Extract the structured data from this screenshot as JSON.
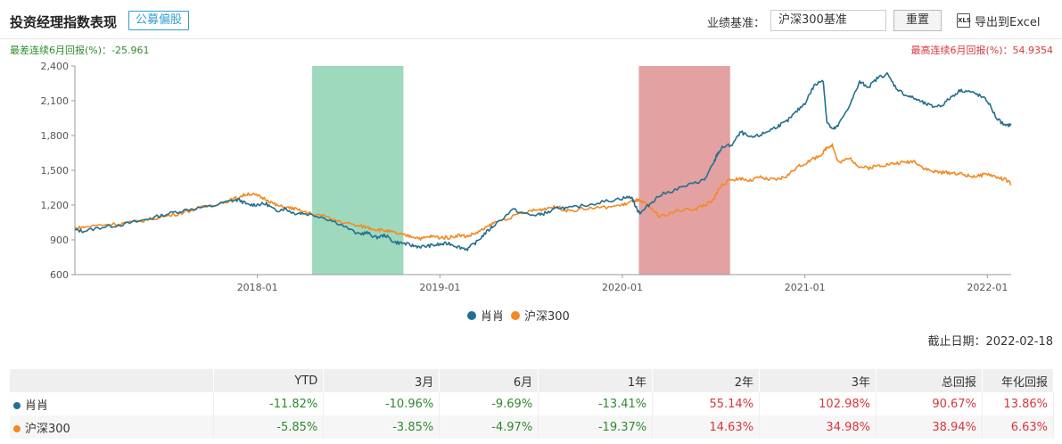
{
  "header": {
    "title": "投资经理指数表现",
    "tag": "公募偏股",
    "benchmark_label": "业绩基准：",
    "benchmark_value": "沪深300基准",
    "reset_label": "重置",
    "export_label": "导出到Excel",
    "export_icon_text": "XLS"
  },
  "worst_6m": "最差连续6月回报(%)：-25.961",
  "best_6m": "最高连续6月回报(%)：54.9354",
  "cutoff": "截止日期：2022-02-18",
  "colors": {
    "series1": "#236f8f",
    "series2": "#f28a23",
    "worst_band": "#9fd9bd",
    "best_band": "#e3a1a1"
  },
  "chart_data": {
    "type": "line",
    "ylim": [
      600,
      2400
    ],
    "yticks": [
      "600",
      "900",
      "1,200",
      "1,500",
      "1,800",
      "2,100",
      "2,400"
    ],
    "ytick_values": [
      600,
      900,
      1200,
      1500,
      1800,
      2100,
      2400
    ],
    "xticks": [
      "2018-01",
      "2019-01",
      "2020-01",
      "2021-01",
      "2022-01"
    ],
    "xtick_values": [
      2018.0,
      2019.0,
      2020.0,
      2021.0,
      2022.0
    ],
    "xlim": [
      2017.0,
      2022.13
    ],
    "worst_band": [
      2018.3,
      2018.8
    ],
    "best_band": [
      2020.09,
      2020.59
    ],
    "legend": [
      "肖肖",
      "沪深300"
    ],
    "series": [
      {
        "name": "肖肖",
        "x": [
          2017.0,
          2017.05,
          2017.15,
          2017.25,
          2017.35,
          2017.45,
          2017.55,
          2017.65,
          2017.75,
          2017.85,
          2017.9,
          2017.95,
          2018.0,
          2018.05,
          2018.1,
          2018.15,
          2018.2,
          2018.25,
          2018.35,
          2018.45,
          2018.55,
          2018.6,
          2018.65,
          2018.7,
          2018.75,
          2018.8,
          2018.85,
          2018.9,
          2018.95,
          2019.0,
          2019.05,
          2019.1,
          2019.15,
          2019.2,
          2019.25,
          2019.3,
          2019.4,
          2019.5,
          2019.55,
          2019.6,
          2019.65,
          2019.7,
          2019.8,
          2019.9,
          2020.0,
          2020.05,
          2020.08,
          2020.1,
          2020.15,
          2020.2,
          2020.3,
          2020.4,
          2020.45,
          2020.5,
          2020.52,
          2020.55,
          2020.6,
          2020.65,
          2020.7,
          2020.75,
          2020.8,
          2020.85,
          2020.9,
          2020.95,
          2021.0,
          2021.05,
          2021.1,
          2021.12,
          2021.15,
          2021.18,
          2021.25,
          2021.3,
          2021.35,
          2021.4,
          2021.45,
          2021.5,
          2021.55,
          2021.6,
          2021.65,
          2021.7,
          2021.75,
          2021.8,
          2021.85,
          2021.9,
          2021.95,
          2022.0,
          2022.05,
          2022.1,
          2022.13
        ],
        "values": [
          985,
          975,
          1010,
          1030,
          1060,
          1100,
          1140,
          1170,
          1190,
          1235,
          1245,
          1200,
          1205,
          1210,
          1150,
          1170,
          1130,
          1130,
          1100,
          1040,
          950,
          960,
          920,
          940,
          880,
          870,
          850,
          840,
          850,
          860,
          870,
          840,
          820,
          880,
          960,
          1030,
          1160,
          1110,
          1120,
          1140,
          1180,
          1170,
          1200,
          1230,
          1260,
          1270,
          1160,
          1130,
          1210,
          1280,
          1340,
          1390,
          1420,
          1560,
          1640,
          1700,
          1720,
          1830,
          1780,
          1800,
          1840,
          1880,
          1920,
          2000,
          2080,
          2230,
          2280,
          1920,
          1850,
          1880,
          2080,
          2260,
          2220,
          2300,
          2330,
          2210,
          2150,
          2120,
          2080,
          2050,
          2060,
          2130,
          2190,
          2180,
          2150,
          2100,
          1950,
          1880,
          1900
        ]
      },
      {
        "name": "沪深300",
        "x": [
          2017.0,
          2017.05,
          2017.15,
          2017.25,
          2017.35,
          2017.45,
          2017.55,
          2017.65,
          2017.75,
          2017.85,
          2017.9,
          2017.95,
          2018.0,
          2018.05,
          2018.1,
          2018.15,
          2018.2,
          2018.25,
          2018.35,
          2018.45,
          2018.55,
          2018.6,
          2018.65,
          2018.7,
          2018.75,
          2018.8,
          2018.85,
          2018.9,
          2018.95,
          2019.0,
          2019.05,
          2019.1,
          2019.15,
          2019.2,
          2019.25,
          2019.3,
          2019.4,
          2019.5,
          2019.55,
          2019.6,
          2019.65,
          2019.7,
          2019.8,
          2019.9,
          2020.0,
          2020.05,
          2020.08,
          2020.1,
          2020.15,
          2020.2,
          2020.3,
          2020.4,
          2020.45,
          2020.5,
          2020.52,
          2020.55,
          2020.6,
          2020.65,
          2020.7,
          2020.75,
          2020.8,
          2020.85,
          2020.9,
          2020.95,
          2021.0,
          2021.05,
          2021.1,
          2021.12,
          2021.15,
          2021.18,
          2021.25,
          2021.3,
          2021.35,
          2021.4,
          2021.45,
          2021.5,
          2021.55,
          2021.6,
          2021.65,
          2021.7,
          2021.75,
          2021.8,
          2021.85,
          2021.9,
          2021.95,
          2022.0,
          2022.05,
          2022.1,
          2022.13
        ],
        "values": [
          1000,
          1010,
          1030,
          1040,
          1060,
          1090,
          1120,
          1160,
          1200,
          1240,
          1270,
          1300,
          1280,
          1250,
          1200,
          1180,
          1170,
          1140,
          1110,
          1060,
          1020,
          1010,
          990,
          980,
          960,
          940,
          930,
          910,
          930,
          920,
          920,
          940,
          930,
          960,
          1000,
          1050,
          1100,
          1150,
          1160,
          1180,
          1180,
          1150,
          1170,
          1180,
          1200,
          1230,
          1240,
          1230,
          1190,
          1100,
          1150,
          1170,
          1200,
          1240,
          1320,
          1380,
          1420,
          1430,
          1410,
          1440,
          1420,
          1420,
          1450,
          1520,
          1560,
          1600,
          1650,
          1700,
          1720,
          1570,
          1600,
          1530,
          1520,
          1540,
          1550,
          1560,
          1570,
          1580,
          1520,
          1490,
          1480,
          1480,
          1470,
          1450,
          1450,
          1470,
          1440,
          1420,
          1380
        ]
      }
    ]
  },
  "table": {
    "headers": [
      "",
      "YTD",
      "3月",
      "6月",
      "1年",
      "2年",
      "3年",
      "总回报",
      "年化回报"
    ],
    "rows": [
      {
        "name": "肖肖",
        "values": [
          "-11.82%",
          "-10.96%",
          "-9.69%",
          "-13.41%",
          "55.14%",
          "102.98%",
          "90.67%",
          "13.86%"
        ]
      },
      {
        "name": "沪深300",
        "values": [
          "-5.85%",
          "-3.85%",
          "-4.97%",
          "-19.37%",
          "14.63%",
          "34.98%",
          "38.94%",
          "6.63%"
        ]
      }
    ]
  }
}
